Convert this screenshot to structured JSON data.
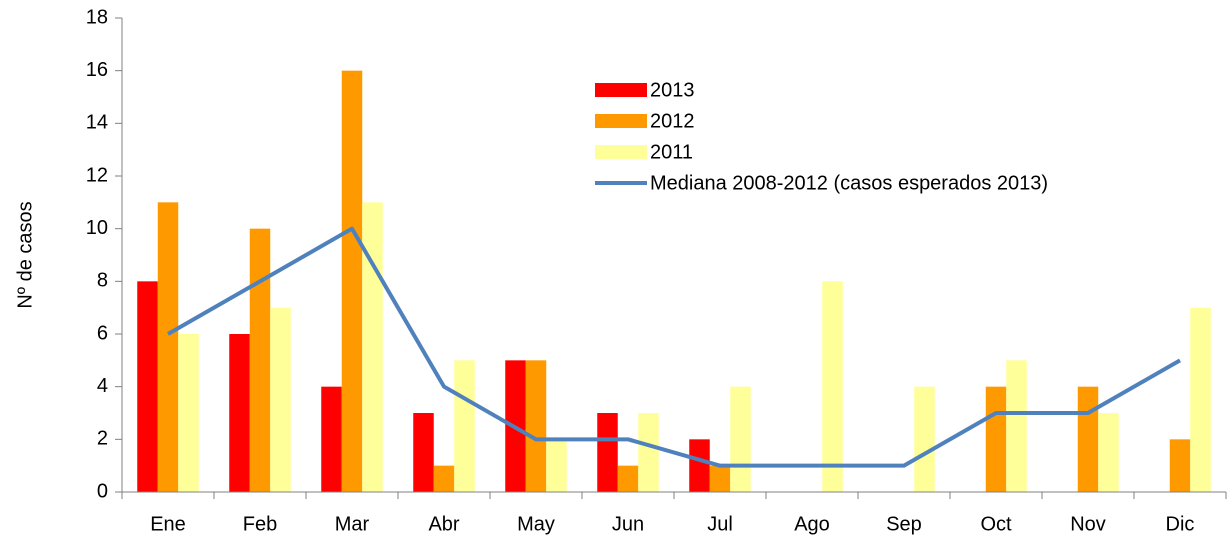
{
  "chart_data": {
    "type": "bar+line",
    "y_label": "Nº de casos",
    "categories": [
      "Ene",
      "Feb",
      "Mar",
      "Abr",
      "May",
      "Jun",
      "Jul",
      "Ago",
      "Sep",
      "Oct",
      "Nov",
      "Dic"
    ],
    "series": [
      {
        "name": "2013",
        "type": "bar",
        "color": "#ff0000",
        "values": [
          8,
          6,
          4,
          3,
          5,
          3,
          2,
          0,
          0,
          0,
          0,
          0
        ]
      },
      {
        "name": "2012",
        "type": "bar",
        "color": "#ff9900",
        "values": [
          11,
          10,
          16,
          1,
          5,
          1,
          1,
          0,
          0,
          4,
          4,
          2
        ]
      },
      {
        "name": "2011",
        "type": "bar",
        "color": "#ffff99",
        "values": [
          6,
          7,
          11,
          5,
          2,
          3,
          4,
          8,
          4,
          5,
          3,
          7
        ]
      },
      {
        "name": "Mediana 2008-2012 (casos esperados 2013)",
        "type": "line",
        "color": "#4f81bd",
        "values": [
          6,
          8,
          10,
          4,
          2,
          2,
          1,
          1,
          1,
          3,
          3,
          5
        ]
      }
    ],
    "ylim": [
      0,
      18
    ],
    "yticks": [
      0,
      2,
      4,
      6,
      8,
      10,
      12,
      14,
      16,
      18
    ],
    "grid": false,
    "legend": "upper-center"
  }
}
